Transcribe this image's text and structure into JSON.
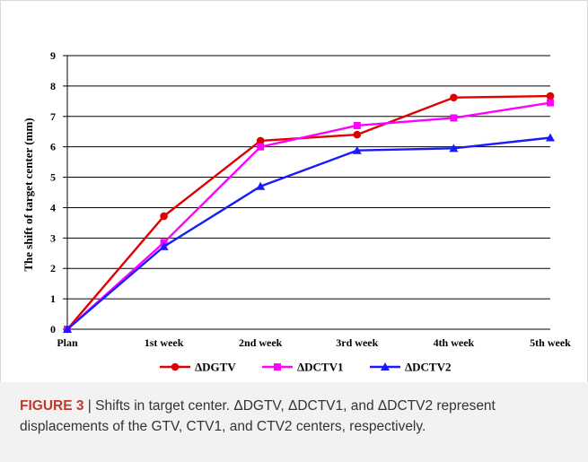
{
  "chart_data": {
    "type": "line",
    "categories": [
      "Plan",
      "1st week",
      "2nd week",
      "3rd week",
      "4th week",
      "5th week"
    ],
    "series": [
      {
        "name": "ΔDGTV",
        "color": "#e00000",
        "marker": "circle",
        "values": [
          0,
          3.72,
          6.2,
          6.4,
          7.62,
          7.67
        ]
      },
      {
        "name": "ΔDCTV1",
        "color": "#ff00ff",
        "marker": "square",
        "values": [
          0,
          2.85,
          6.0,
          6.7,
          6.95,
          7.45
        ]
      },
      {
        "name": "ΔDCTV2",
        "color": "#1a1aff",
        "marker": "triangle",
        "values": [
          0,
          2.72,
          4.7,
          5.88,
          5.95,
          6.3
        ]
      }
    ],
    "xlabel": "",
    "ylabel": "The shift of target center (mm)",
    "ylim": [
      0,
      9
    ],
    "yticks": [
      "0",
      "1",
      "2",
      "3",
      "4",
      "5",
      "6",
      "7",
      "8",
      "9"
    ],
    "grid": true,
    "legend_position": "bottom"
  },
  "caption": {
    "label": "FIGURE 3",
    "separator": "|",
    "text": "Shifts in target center. ΔDGTV, ΔDCTV1, and ΔDCTV2 represent displacements of the GTV, CTV1, and CTV2 centers, respectively."
  }
}
